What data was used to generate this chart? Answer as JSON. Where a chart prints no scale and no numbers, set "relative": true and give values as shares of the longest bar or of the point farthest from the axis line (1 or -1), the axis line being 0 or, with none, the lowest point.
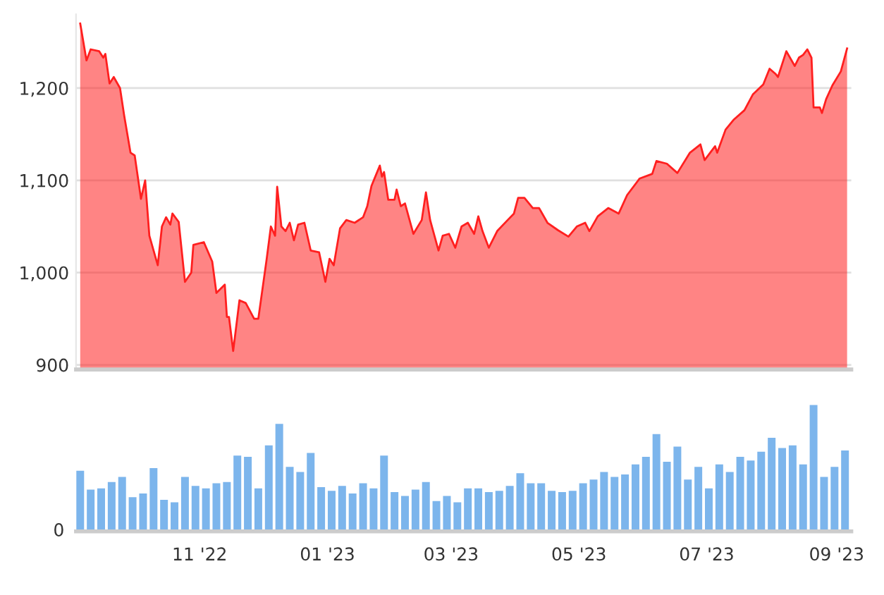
{
  "chart_data": [
    {
      "type": "area",
      "xlim": [
        "2022-09-03",
        "2023-09-08"
      ],
      "ylim": [
        895,
        1280
      ],
      "yticks": [
        900,
        {
          "value": 1000,
          "label": "1,000"
        },
        {
          "value": 1100,
          "label": "1,100"
        },
        {
          "value": 1200,
          "label": "1,200"
        }
      ],
      "grid": "y",
      "tick_labels": "y",
      "legend": false,
      "x": [
        "2022-09-05",
        "2022-09-08",
        "2022-09-10",
        "2022-09-14",
        "2022-09-16",
        "2022-09-17",
        "2022-09-19",
        "2022-09-21",
        "2022-09-24",
        "2022-09-26",
        "2022-09-29",
        "2022-10-01",
        "2022-10-04",
        "2022-10-06",
        "2022-10-08",
        "2022-10-12",
        "2022-10-14",
        "2022-10-16",
        "2022-10-18",
        "2022-10-19",
        "2022-10-22",
        "2022-10-25",
        "2022-10-28",
        "2022-10-29",
        "2022-11-03",
        "2022-11-07",
        "2022-11-09",
        "2022-11-13",
        "2022-11-14",
        "2022-11-15",
        "2022-11-17",
        "2022-11-20",
        "2022-11-23",
        "2022-11-27",
        "2022-11-29",
        "2022-12-03",
        "2022-12-05",
        "2022-12-07",
        "2022-12-08",
        "2022-12-10",
        "2022-12-12",
        "2022-12-14",
        "2022-12-16",
        "2022-12-18",
        "2022-12-21",
        "2022-12-24",
        "2022-12-28",
        "2022-12-31",
        "2023-01-02",
        "2023-01-04",
        "2023-01-07",
        "2023-01-10",
        "2023-01-14",
        "2023-01-18",
        "2023-01-20",
        "2023-01-22",
        "2023-01-26",
        "2023-01-27",
        "2023-01-28",
        "2023-01-30",
        "2023-02-02",
        "2023-02-03",
        "2023-02-05",
        "2023-02-07",
        "2023-02-11",
        "2023-02-15",
        "2023-02-17",
        "2023-02-19",
        "2023-02-23",
        "2023-02-25",
        "2023-02-28",
        "2023-03-03",
        "2023-03-06",
        "2023-03-09",
        "2023-03-12",
        "2023-03-14",
        "2023-03-16",
        "2023-03-19",
        "2023-03-23",
        "2023-03-28",
        "2023-03-31",
        "2023-04-02",
        "2023-04-05",
        "2023-04-09",
        "2023-04-12",
        "2023-04-16",
        "2023-04-21",
        "2023-04-26",
        "2023-04-30",
        "2023-05-04",
        "2023-05-06",
        "2023-05-10",
        "2023-05-15",
        "2023-05-20",
        "2023-05-24",
        "2023-05-30",
        "2023-06-05",
        "2023-06-07",
        "2023-06-12",
        "2023-06-17",
        "2023-06-23",
        "2023-06-28",
        "2023-06-30",
        "2023-07-05",
        "2023-07-06",
        "2023-07-10",
        "2023-07-14",
        "2023-07-19",
        "2023-07-23",
        "2023-07-28",
        "2023-07-31",
        "2023-08-03",
        "2023-08-04",
        "2023-08-08",
        "2023-08-12",
        "2023-08-14",
        "2023-08-16",
        "2023-08-18",
        "2023-08-20",
        "2023-08-21",
        "2023-08-24",
        "2023-08-25",
        "2023-08-27",
        "2023-08-30",
        "2023-09-03",
        "2023-09-06"
      ],
      "series": [
        {
          "color": "#ff1f1f",
          "values": [
            1270,
            1230,
            1242,
            1240,
            1233,
            1237,
            1205,
            1212,
            1200,
            1170,
            1130,
            1127,
            1080,
            1100,
            1040,
            1008,
            1050,
            1060,
            1052,
            1064,
            1055,
            990,
            1000,
            1030,
            1033,
            1012,
            978,
            987,
            952,
            952,
            915,
            970,
            967,
            950,
            950,
            1015,
            1050,
            1040,
            1093,
            1050,
            1045,
            1054,
            1035,
            1052,
            1054,
            1024,
            1022,
            990,
            1015,
            1008,
            1048,
            1057,
            1054,
            1060,
            1072,
            1094,
            1116,
            1104,
            1109,
            1079,
            1079,
            1090,
            1072,
            1075,
            1042,
            1057,
            1087,
            1057,
            1024,
            1040,
            1042,
            1027,
            1050,
            1054,
            1042,
            1061,
            1045,
            1027,
            1045,
            1057,
            1064,
            1081,
            1081,
            1070,
            1070,
            1054,
            1046,
            1039,
            1050,
            1054,
            1045,
            1061,
            1070,
            1064,
            1084,
            1102,
            1107,
            1121,
            1118,
            1108,
            1130,
            1139,
            1122,
            1137,
            1130,
            1155,
            1166,
            1176,
            1193,
            1204,
            1221,
            1215,
            1212,
            1240,
            1224,
            1233,
            1236,
            1242,
            1233,
            1179,
            1179,
            1173,
            1188,
            1203,
            1218,
            1243
          ]
        }
      ]
    },
    {
      "type": "bar",
      "relative": true,
      "xlim": [
        "2022-09-03",
        "2023-09-08"
      ],
      "xticks": [
        {
          "value": "2022-11-01",
          "label": "11 '22"
        },
        {
          "value": "2023-01-01",
          "label": "01 '23"
        },
        {
          "value": "2023-03-01",
          "label": "03 '23"
        },
        {
          "value": "2023-05-01",
          "label": "05 '23"
        },
        {
          "value": "2023-07-01",
          "label": "07 '23"
        },
        {
          "value": "2023-09-01",
          "label": "09 '23"
        }
      ],
      "tick_labels": "x",
      "annotations": [
        "0"
      ],
      "x": [
        "2022-09-05",
        "2022-09-10",
        "2022-09-15",
        "2022-09-20",
        "2022-09-25",
        "2022-09-30",
        "2022-10-05",
        "2022-10-10",
        "2022-10-15",
        "2022-10-20",
        "2022-10-25",
        "2022-10-30",
        "2022-11-04",
        "2022-11-09",
        "2022-11-14",
        "2022-11-19",
        "2022-11-24",
        "2022-11-29",
        "2022-12-04",
        "2022-12-09",
        "2022-12-14",
        "2022-12-19",
        "2022-12-24",
        "2022-12-29",
        "2023-01-03",
        "2023-01-08",
        "2023-01-13",
        "2023-01-18",
        "2023-01-23",
        "2023-01-28",
        "2023-02-02",
        "2023-02-07",
        "2023-02-12",
        "2023-02-17",
        "2023-02-22",
        "2023-02-27",
        "2023-03-04",
        "2023-03-09",
        "2023-03-14",
        "2023-03-19",
        "2023-03-24",
        "2023-03-29",
        "2023-04-03",
        "2023-04-08",
        "2023-04-13",
        "2023-04-18",
        "2023-04-23",
        "2023-04-28",
        "2023-05-03",
        "2023-05-08",
        "2023-05-13",
        "2023-05-18",
        "2023-05-23",
        "2023-05-28",
        "2023-06-02",
        "2023-06-07",
        "2023-06-12",
        "2023-06-17",
        "2023-06-22",
        "2023-06-27",
        "2023-07-02",
        "2023-07-07",
        "2023-07-12",
        "2023-07-17",
        "2023-07-22",
        "2023-07-27",
        "2023-08-01",
        "2023-08-06",
        "2023-08-11",
        "2023-08-16",
        "2023-08-21",
        "2023-08-26",
        "2023-08-31",
        "2023-09-05"
      ],
      "series": [
        {
          "color": "#7cb5ec",
          "values": [
            0.48,
            0.33,
            0.34,
            0.39,
            0.43,
            0.27,
            0.3,
            0.5,
            0.25,
            0.23,
            0.43,
            0.36,
            0.34,
            0.38,
            0.39,
            0.6,
            0.59,
            0.34,
            0.68,
            0.85,
            0.51,
            0.47,
            0.62,
            0.35,
            0.32,
            0.36,
            0.3,
            0.38,
            0.34,
            0.6,
            0.31,
            0.28,
            0.33,
            0.39,
            0.24,
            0.28,
            0.23,
            0.34,
            0.34,
            0.31,
            0.32,
            0.36,
            0.46,
            0.38,
            0.38,
            0.32,
            0.31,
            0.32,
            0.38,
            0.41,
            0.47,
            0.43,
            0.45,
            0.53,
            0.59,
            0.77,
            0.55,
            0.67,
            0.41,
            0.51,
            0.34,
            0.53,
            0.47,
            0.59,
            0.56,
            0.63,
            0.74,
            0.66,
            0.68,
            0.53,
            1.0,
            0.43,
            0.51,
            0.64
          ]
        }
      ]
    }
  ]
}
